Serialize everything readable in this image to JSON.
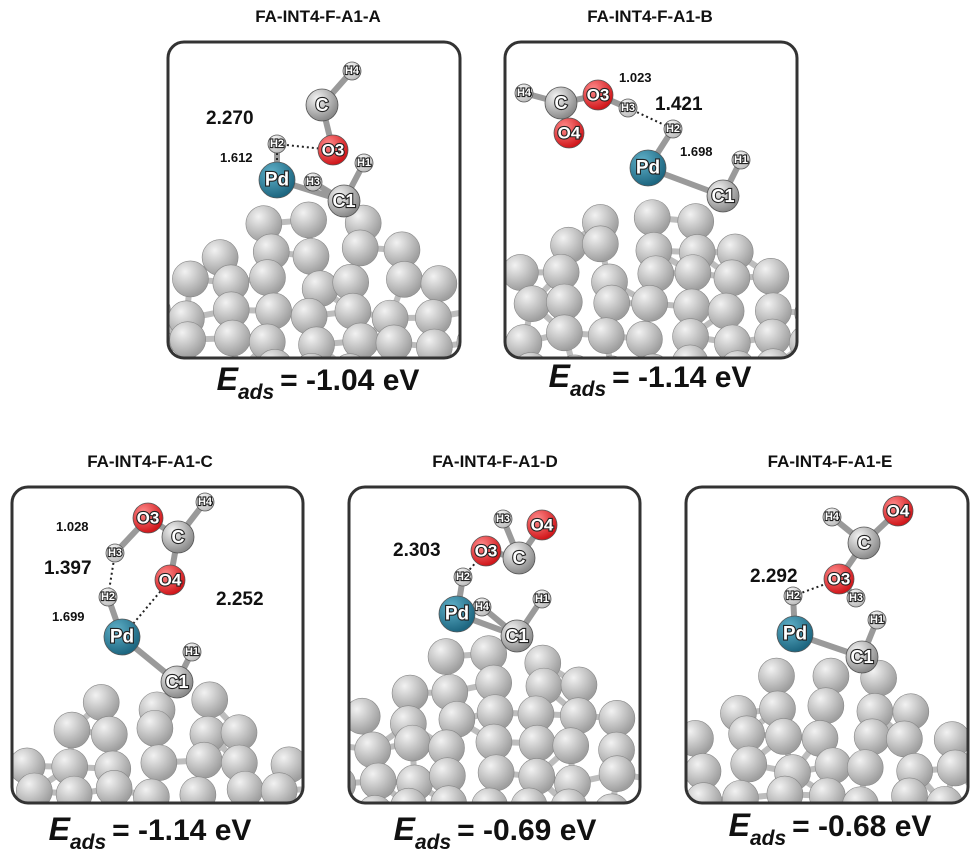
{
  "panels": [
    {
      "title": "FA-INT4-F-A1-A",
      "atoms": [
        "H4",
        "C",
        "O3",
        "H2",
        "H1",
        "Pd",
        "H3",
        "C1"
      ],
      "distances": [
        "2.270",
        "1.612"
      ],
      "energy": {
        "symbol": "E",
        "subscript": "ads",
        "text": "= -1.04 eV"
      }
    },
    {
      "title": "FA-INT4-F-A1-B",
      "atoms": [
        "H4",
        "C",
        "O3",
        "O4",
        "H3",
        "H2",
        "Pd",
        "H1",
        "C1"
      ],
      "distances": [
        "1.023",
        "1.421",
        "1.698"
      ],
      "energy": {
        "symbol": "E",
        "subscript": "ads",
        "text": "= -1.14 eV"
      }
    },
    {
      "title": "FA-INT4-F-A1-C",
      "atoms": [
        "O3",
        "H4",
        "C",
        "H3",
        "H2",
        "O4",
        "Pd",
        "H1",
        "C1"
      ],
      "distances": [
        "1.028",
        "1.397",
        "2.252",
        "1.699"
      ],
      "energy": {
        "symbol": "E",
        "subscript": "ads",
        "text": "= -1.14 eV"
      }
    },
    {
      "title": "FA-INT4-F-A1-D",
      "atoms": [
        "H3",
        "O4",
        "O3",
        "C",
        "H2",
        "H4",
        "H1",
        "Pd",
        "C1"
      ],
      "distances": [
        "2.303"
      ],
      "energy": {
        "symbol": "E",
        "subscript": "ads",
        "text": "= -0.69 eV"
      }
    },
    {
      "title": "FA-INT4-F-A1-E",
      "atoms": [
        "H4",
        "O4",
        "C",
        "H2",
        "O3",
        "H3",
        "H1",
        "Pd",
        "C1"
      ],
      "distances": [
        "2.292"
      ],
      "energy": {
        "symbol": "E",
        "subscript": "ads",
        "text": "= -0.68 eV"
      }
    }
  ]
}
